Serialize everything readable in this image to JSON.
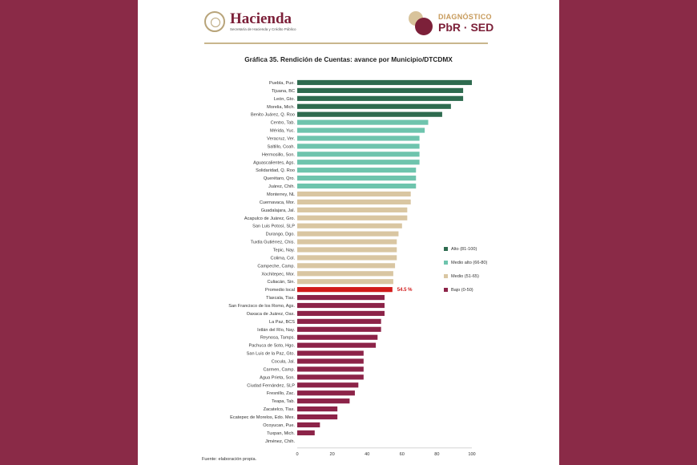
{
  "header": {
    "brand_title": "Hacienda",
    "brand_subtitle": "Secretaría de Hacienda y Crédito Público",
    "diag_line1": "DIAGNÓSTICO",
    "diag_line2": "PbR · SED"
  },
  "colors": {
    "background": "#8a2a47",
    "alto": "#2e6b4f",
    "medio_alto": "#6ec4ad",
    "medio": "#d9c6a2",
    "bajo": "#8c2348",
    "promedio": "#d11a1a"
  },
  "legend": [
    {
      "label": "Alto (81-100)",
      "color": "#2e6b4f"
    },
    {
      "label": "Medio alto (66-80)",
      "color": "#6ec4ad"
    },
    {
      "label": "Medio (51-65)",
      "color": "#d9c6a2"
    },
    {
      "label": "Bajo (0-50)",
      "color": "#8c2348"
    }
  ],
  "source": "Fuente: elaboración propia.",
  "chart_data": {
    "type": "bar",
    "orientation": "horizontal",
    "title": "Gráfica 35. Rendición de Cuentas: avance por Municipio/DTCDMX",
    "xlim": [
      0,
      100
    ],
    "xticks": [
      0,
      20,
      40,
      60,
      80,
      100
    ],
    "categories": [
      "Puebla, Pue.",
      "Tijuana, BC",
      "León, Gto.",
      "Morelia, Mich.",
      "Benito Juárez, Q. Roo",
      "Centro, Tab.",
      "Mérida, Yuc.",
      "Veracruz, Ver.",
      "Saltillo, Coah.",
      "Hermosillo, Son.",
      "Aguascalientes, Ags.",
      "Solidaridad, Q. Roo",
      "Querétaro, Qro.",
      "Juárez, Chih.",
      "Monterrey, NL",
      "Cuernavaca, Mor.",
      "Guadalajara, Jal.",
      "Acapulco de Juárez, Gro.",
      "San Luis Potosí, SLP",
      "Durango, Dgo.",
      "Tuxtla Gutiérrez, Chis.",
      "Tepic, Nay.",
      "Colima, Col.",
      "Campeche, Camp.",
      "Xochitepec, Mor.",
      "Culiacán, Sin.",
      "Promedio local",
      "Tlaxcala, Tlax.",
      "San Francisco de los Romo, Ags.",
      "Oaxaca de Juárez, Oax.",
      "La Paz, BCS",
      "Ixtlán del Río, Nay.",
      "Reynosa, Tamps.",
      "Pachuca de Soto, Hgo.",
      "San Luis de la Paz, Gto.",
      "Cocula, Jal.",
      "Carmen, Camp.",
      "Agua Prieta, Son.",
      "Ciudad Fernández, SLP",
      "Fresnillo, Zac.",
      "Teapa, Tab.",
      "Zacatelco, Tlax.",
      "Ecatepec de Morelos, Edo. Mex.",
      "Ocoyucan, Pue.",
      "Tuxpan, Mich.",
      "Jiménez, Chih."
    ],
    "values": [
      100,
      95,
      95,
      88,
      83,
      75,
      73,
      70,
      70,
      70,
      70,
      68,
      68,
      68,
      65,
      65,
      63,
      63,
      60,
      58,
      57,
      57,
      57,
      56,
      55,
      55,
      54.5,
      50,
      50,
      50,
      48,
      48,
      46,
      45,
      38,
      38,
      38,
      38,
      35,
      33,
      30,
      23,
      23,
      13,
      10,
      0
    ],
    "groups": [
      "alto",
      "alto",
      "alto",
      "alto",
      "alto",
      "medio_alto",
      "medio_alto",
      "medio_alto",
      "medio_alto",
      "medio_alto",
      "medio_alto",
      "medio_alto",
      "medio_alto",
      "medio_alto",
      "medio",
      "medio",
      "medio",
      "medio",
      "medio",
      "medio",
      "medio",
      "medio",
      "medio",
      "medio",
      "medio",
      "medio",
      "promedio",
      "bajo",
      "bajo",
      "bajo",
      "bajo",
      "bajo",
      "bajo",
      "bajo",
      "bajo",
      "bajo",
      "bajo",
      "bajo",
      "bajo",
      "bajo",
      "bajo",
      "bajo",
      "bajo",
      "bajo",
      "bajo",
      "bajo"
    ],
    "annotations": [
      {
        "category": "Promedio local",
        "text": "54.5 %"
      }
    ],
    "legend_position": "right"
  }
}
